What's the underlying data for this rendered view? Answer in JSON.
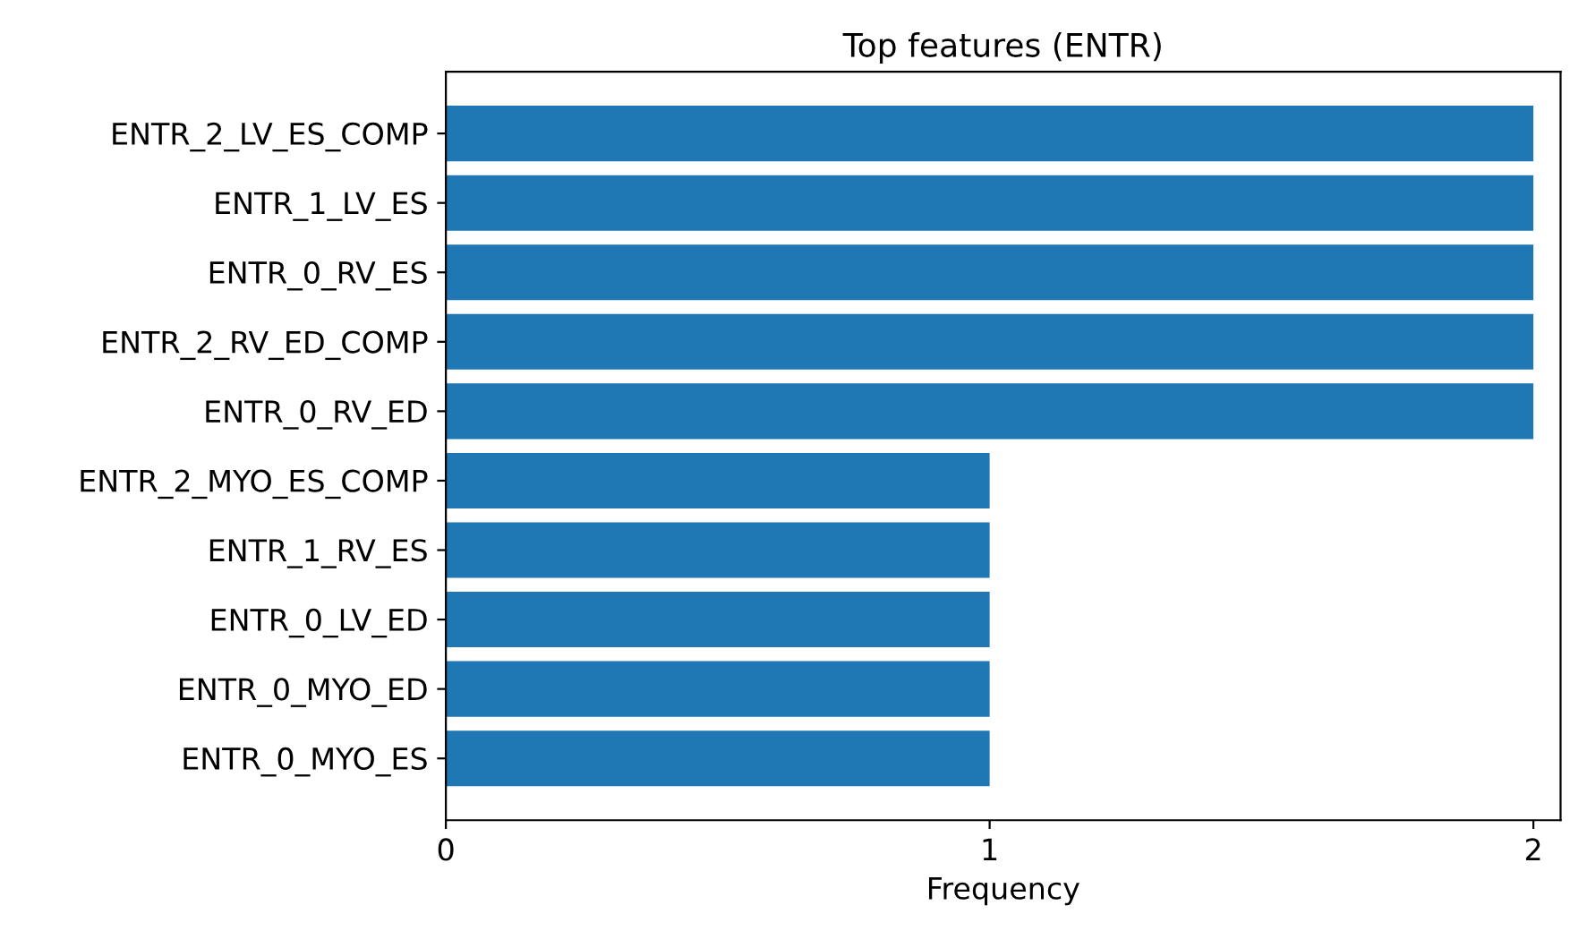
{
  "chart_data": {
    "type": "bar",
    "orientation": "horizontal",
    "title": "Top features (ENTR)",
    "xlabel": "Frequency",
    "categories": [
      "ENTR_2_LV_ES_COMP",
      "ENTR_1_LV_ES",
      "ENTR_0_RV_ES",
      "ENTR_2_RV_ED_COMP",
      "ENTR_0_RV_ED",
      "ENTR_2_MYO_ES_COMP",
      "ENTR_1_RV_ES",
      "ENTR_0_LV_ED",
      "ENTR_0_MYO_ED",
      "ENTR_0_MYO_ES"
    ],
    "values": [
      2,
      2,
      2,
      2,
      2,
      1,
      1,
      1,
      1,
      1
    ],
    "color": "#1f77b4",
    "xlim": [
      0,
      2.05
    ],
    "xticks": [
      0,
      1,
      2
    ],
    "grid": false
  }
}
